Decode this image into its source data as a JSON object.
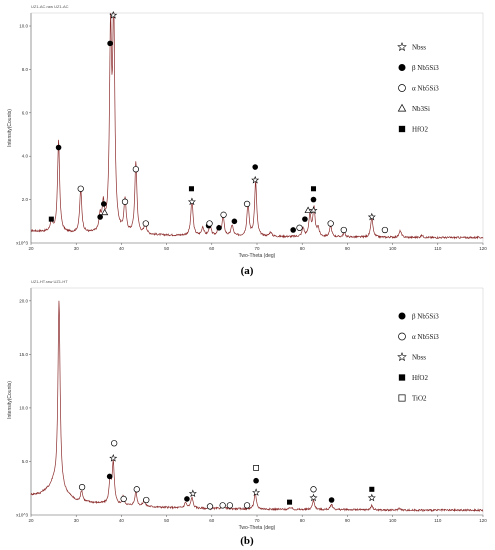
{
  "legend_symbols": {
    "circle_filled": "filled-circle",
    "circle_open": "open-circle",
    "star": "star",
    "triangle_open": "open-triangle",
    "square_filled": "filled-square",
    "square_open": "open-square"
  },
  "colors": {
    "trace": "#8b2a2a",
    "axis": "#555555",
    "marker": "#000000"
  },
  "chart_data": [
    {
      "type": "line",
      "header": "UZ1-AC.raw UZ1-AC",
      "caption": "(a)",
      "xlabel": "Two-Theta (deg)",
      "ylabel": "Intensity(Counts)",
      "exponent_label": "x10^3",
      "xlim": [
        20,
        120
      ],
      "ylim": [
        0,
        10.6
      ],
      "xticks": [
        20,
        30,
        40,
        50,
        60,
        70,
        80,
        90,
        100,
        110,
        120
      ],
      "yticks": [
        2.0,
        4.0,
        6.0,
        8.0,
        10.0
      ],
      "ytick_labels": [
        "2.0",
        "4.0",
        "6.0",
        "8.0",
        "10.0"
      ],
      "baseline": [
        [
          20,
          0.55
        ],
        [
          30,
          0.45
        ],
        [
          40,
          0.4
        ],
        [
          50,
          0.35
        ],
        [
          60,
          0.32
        ],
        [
          70,
          0.3
        ],
        [
          80,
          0.28
        ],
        [
          90,
          0.27
        ],
        [
          100,
          0.26
        ],
        [
          110,
          0.25
        ],
        [
          120,
          0.25
        ]
      ],
      "peaks": [
        [
          24.5,
          0.5
        ],
        [
          26.1,
          4.2
        ],
        [
          31.0,
          2.0
        ],
        [
          35.3,
          0.7
        ],
        [
          36.0,
          1.2
        ],
        [
          37.6,
          8.8
        ],
        [
          38.3,
          9.8
        ],
        [
          40.8,
          1.5
        ],
        [
          43.2,
          3.3
        ],
        [
          45.3,
          0.5
        ],
        [
          55.6,
          1.7
        ],
        [
          58.0,
          0.4
        ],
        [
          59.6,
          0.5
        ],
        [
          61.5,
          0.4
        ],
        [
          62.5,
          0.9
        ],
        [
          64.5,
          0.5
        ],
        [
          68.0,
          1.5
        ],
        [
          69.7,
          2.5
        ],
        [
          73.0,
          0.2
        ],
        [
          80.2,
          0.4
        ],
        [
          81.7,
          1.0
        ],
        [
          82.6,
          1.3
        ],
        [
          83.5,
          0.4
        ],
        [
          86.3,
          0.5
        ],
        [
          89.3,
          0.2
        ],
        [
          95.4,
          0.9
        ],
        [
          101.7,
          0.3
        ],
        [
          106.5,
          0.1
        ]
      ],
      "legend": [
        {
          "symbol": "star",
          "label": "Nbss"
        },
        {
          "symbol": "circle_filled",
          "label": "β Nb5Si3"
        },
        {
          "symbol": "circle_open",
          "label": "α Nb5Si3"
        },
        {
          "symbol": "triangle_open",
          "label": "Nb3Si"
        },
        {
          "symbol": "square_filled",
          "label": "HfO2"
        }
      ],
      "markers": [
        {
          "symbol": "square_filled",
          "points": [
            [
              24.5,
              1.1
            ],
            [
              55.5,
              2.5
            ],
            [
              82.5,
              2.5
            ]
          ]
        },
        {
          "symbol": "star",
          "points": [
            [
              38.2,
              10.5
            ],
            [
              55.6,
              1.9
            ],
            [
              69.6,
              2.9
            ],
            [
              82.5,
              1.5
            ],
            [
              95.4,
              1.2
            ]
          ]
        },
        {
          "symbol": "circle_filled",
          "points": [
            [
              26.1,
              4.4
            ],
            [
              35.3,
              1.2
            ],
            [
              36.1,
              1.8
            ],
            [
              37.5,
              9.2
            ],
            [
              59.3,
              0.8
            ],
            [
              61.6,
              0.7
            ],
            [
              65.0,
              1.0
            ],
            [
              69.6,
              3.5
            ],
            [
              78.0,
              0.6
            ],
            [
              80.6,
              1.1
            ],
            [
              82.5,
              2.0
            ]
          ]
        },
        {
          "symbol": "circle_open",
          "points": [
            [
              31.0,
              2.5
            ],
            [
              40.8,
              1.9
            ],
            [
              43.2,
              3.4
            ],
            [
              45.4,
              0.9
            ],
            [
              59.5,
              0.9
            ],
            [
              62.6,
              1.3
            ],
            [
              67.8,
              1.8
            ],
            [
              79.4,
              0.7
            ],
            [
              86.3,
              0.9
            ],
            [
              89.2,
              0.6
            ],
            [
              98.3,
              0.6
            ]
          ]
        },
        {
          "symbol": "triangle_open",
          "points": [
            [
              36.3,
              1.4
            ],
            [
              81.3,
              1.5
            ]
          ]
        }
      ]
    },
    {
      "type": "line",
      "header": "UZ1-HT.raw UZ1-HT",
      "caption": "(b)",
      "xlabel": "Two-Theta (deg)",
      "ylabel": "Intensity(Counts)",
      "exponent_label": "x10^3",
      "xlim": [
        20,
        120
      ],
      "ylim": [
        0,
        21.2
      ],
      "xticks": [
        20,
        30,
        40,
        50,
        60,
        70,
        80,
        90,
        100,
        110,
        120
      ],
      "yticks": [
        5.0,
        10.0,
        15.0,
        20.0
      ],
      "ytick_labels": [
        "5.0",
        "10.0",
        "15.0",
        "20.0"
      ],
      "baseline": [
        [
          20,
          1.9
        ],
        [
          22,
          2.0
        ],
        [
          24,
          2.5
        ],
        [
          25,
          3.0
        ],
        [
          27,
          2.2
        ],
        [
          30,
          1.3
        ],
        [
          35,
          1.1
        ],
        [
          40,
          0.9
        ],
        [
          50,
          0.7
        ],
        [
          60,
          0.6
        ],
        [
          70,
          0.55
        ],
        [
          80,
          0.5
        ],
        [
          90,
          0.5
        ],
        [
          100,
          0.45
        ],
        [
          110,
          0.45
        ],
        [
          120,
          0.45
        ]
      ],
      "peaks": [
        [
          26.2,
          17.5
        ],
        [
          31.2,
          1.0
        ],
        [
          37.5,
          2.2
        ],
        [
          38.2,
          3.8
        ],
        [
          40.4,
          0.8
        ],
        [
          43.2,
          1.3
        ],
        [
          45.0,
          0.5
        ],
        [
          54.2,
          0.5
        ],
        [
          55.6,
          1.0
        ],
        [
          62.5,
          0.4
        ],
        [
          69.6,
          1.5
        ],
        [
          77.5,
          0.2
        ],
        [
          82.5,
          0.9
        ],
        [
          86.5,
          0.5
        ],
        [
          95.4,
          0.4
        ],
        [
          101.5,
          0.2
        ]
      ],
      "legend": [
        {
          "symbol": "circle_filled",
          "label": "β Nb5Si3"
        },
        {
          "symbol": "circle_open",
          "label": "α Nb5Si3"
        },
        {
          "symbol": "star",
          "label": "Nbss"
        },
        {
          "symbol": "square_filled",
          "label": "HfO2"
        },
        {
          "symbol": "square_open",
          "label": "TiO2"
        }
      ],
      "markers": [
        {
          "symbol": "circle_open",
          "points": [
            [
              31.3,
              2.6
            ],
            [
              38.4,
              6.7
            ],
            [
              40.5,
              1.5
            ],
            [
              43.4,
              2.4
            ],
            [
              45.5,
              1.4
            ],
            [
              59.6,
              0.8
            ],
            [
              62.4,
              0.9
            ],
            [
              64.0,
              0.9
            ],
            [
              67.8,
              0.9
            ],
            [
              82.5,
              2.4
            ]
          ]
        },
        {
          "symbol": "circle_filled",
          "points": [
            [
              37.4,
              3.6
            ],
            [
              54.5,
              1.5
            ],
            [
              69.8,
              3.2
            ],
            [
              86.5,
              1.4
            ]
          ]
        },
        {
          "symbol": "star",
          "points": [
            [
              38.2,
              5.3
            ],
            [
              55.8,
              2.0
            ],
            [
              69.8,
              2.1
            ],
            [
              82.5,
              1.6
            ],
            [
              95.4,
              1.6
            ]
          ]
        },
        {
          "symbol": "square_filled",
          "points": [
            [
              77.2,
              1.2
            ],
            [
              95.4,
              2.4
            ]
          ]
        },
        {
          "symbol": "square_open",
          "points": [
            [
              69.8,
              4.4
            ]
          ]
        }
      ]
    }
  ]
}
